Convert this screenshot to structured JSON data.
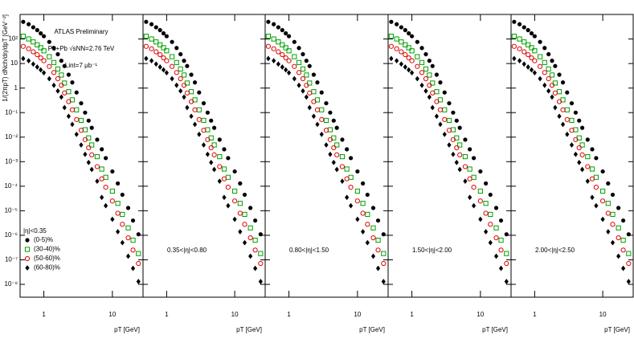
{
  "chart_data": [
    {
      "type": "scatter",
      "log_x": true,
      "log_y": true,
      "legend": "lower-left",
      "y_label": "1/(2πpT) dNch/dη/dpT [GeV⁻²]",
      "x_label": "pT [GeV]",
      "annotations": [
        "ATLAS Preliminary",
        "Pb+Pb √sNN=2.76 TeV",
        "Lint=7 μb⁻¹"
      ],
      "subtitle": "|η|<0.35",
      "xlim": [
        0.45,
        28
      ],
      "xticks": [
        1,
        10
      ],
      "ylim": [
        3e-09,
        1000
      ],
      "yticks": [
        {
          "value": 1e-08,
          "label": "10⁻⁸"
        },
        {
          "value": 1e-07,
          "label": "10⁻⁷"
        },
        {
          "value": 1e-06,
          "label": "10⁻⁶"
        },
        {
          "value": 1e-05,
          "label": "10⁻⁵"
        },
        {
          "value": 0.0001,
          "label": "10⁻⁴"
        },
        {
          "value": 0.001,
          "label": "10⁻³"
        },
        {
          "value": 0.01,
          "label": "10⁻²"
        },
        {
          "value": 0.1,
          "label": "10⁻¹"
        },
        1,
        10,
        {
          "value": 100,
          "label": "10²"
        }
      ],
      "x": [
        0.5,
        0.6,
        0.7,
        0.8,
        0.9,
        1.0,
        1.2,
        1.4,
        1.6,
        1.8,
        2.0,
        2.3,
        2.6,
        3.0,
        3.5,
        4.0,
        4.5,
        5.0,
        6,
        7,
        8,
        10,
        12,
        14,
        17,
        20,
        24
      ],
      "series": [
        {
          "name": "(0-5)%",
          "color": "#000000",
          "marker": "filled-circle",
          "values": [
            500,
            400,
            300,
            230,
            170,
            130,
            76,
            43,
            24,
            13,
            7.9,
            3.5,
            1.7,
            0.66,
            0.24,
            0.1,
            0.047,
            0.024,
            0.0079,
            0.0032,
            0.0014,
            0.0004,
            0.00013,
            4.5e-05,
            1.3e-05,
            4e-06,
            1.1e-06
          ]
        },
        {
          "name": "(30-40)%",
          "color": "#00a000",
          "marker": "open-square",
          "values": [
            130,
            100,
            76,
            58,
            44,
            33,
            19,
            11,
            6,
            3.4,
            1.6,
            0.71,
            0.33,
            0.13,
            0.048,
            0.02,
            0.0093,
            0.0048,
            0.0016,
            0.0005,
            0.00023,
            6.3e-05,
            2e-05,
            7.1e-06,
            2e-06,
            6.3e-07,
            1.8e-07
          ]
        },
        {
          "name": "(50-60)%",
          "color": "#e00000",
          "marker": "open-circle",
          "values": [
            50,
            40,
            30,
            23,
            17,
            13,
            7.6,
            4.3,
            2.4,
            1.3,
            0.63,
            0.28,
            0.13,
            0.052,
            0.019,
            0.0079,
            0.0037,
            0.0019,
            0.00063,
            0.0002,
            9.1e-05,
            2.5e-05,
            7.9e-06,
            2.8e-06,
            7.9e-07,
            2.5e-07,
            7.1e-08
          ]
        },
        {
          "name": "(60-80)%",
          "color": "#000000",
          "marker": "filled-diamond",
          "values": [
            16,
            13,
            9.5,
            7.2,
            5.5,
            4.2,
            2.4,
            1.3,
            0.76,
            0.43,
            0.16,
            0.071,
            0.033,
            0.013,
            0.0048,
            0.002,
            0.00093,
            0.00048,
            0.00016,
            3.5e-05,
            1.6e-05,
            4.5e-06,
            1.4e-06,
            5e-07,
            1.4e-07,
            4.5e-08,
            1.3e-08
          ]
        }
      ]
    },
    {
      "type": "scatter",
      "log_x": true,
      "log_y": true,
      "x_label": "pT [GeV]",
      "subtitle": "0.35<|η|<0.80",
      "xlim": [
        0.45,
        28
      ],
      "xticks": [
        1,
        10
      ],
      "ylim": [
        3e-09,
        1000
      ],
      "yticks": [
        1e-08,
        1e-07,
        1e-06,
        1e-05,
        0.0001,
        0.001,
        0.01,
        0.1,
        1,
        10,
        100
      ],
      "x": [
        0.5,
        0.6,
        0.7,
        0.8,
        0.9,
        1.0,
        1.2,
        1.4,
        1.6,
        1.8,
        2.0,
        2.3,
        2.6,
        3.0,
        3.5,
        4.0,
        4.5,
        5.0,
        6,
        7,
        8,
        10,
        12,
        14,
        17,
        20,
        24
      ],
      "series": [
        {
          "color": "#000000",
          "marker": "filled-circle",
          "values": [
            500,
            400,
            300,
            230,
            170,
            130,
            76,
            43,
            24,
            13,
            7.9,
            3.5,
            1.7,
            0.66,
            0.24,
            0.1,
            0.047,
            0.024,
            0.0079,
            0.0032,
            0.0014,
            0.0004,
            0.00013,
            4.5e-05,
            1.3e-05,
            4e-06,
            1.1e-06
          ]
        },
        {
          "color": "#00a000",
          "marker": "open-square",
          "values": [
            130,
            100,
            76,
            58,
            44,
            33,
            19,
            11,
            6,
            3.4,
            1.6,
            0.71,
            0.33,
            0.13,
            0.048,
            0.02,
            0.0093,
            0.0048,
            0.0016,
            0.0005,
            0.00023,
            6.3e-05,
            2e-05,
            7.1e-06,
            2e-06,
            6.3e-07,
            1.8e-07
          ]
        },
        {
          "color": "#e00000",
          "marker": "open-circle",
          "values": [
            50,
            40,
            30,
            23,
            17,
            13,
            7.6,
            4.3,
            2.4,
            1.3,
            0.63,
            0.28,
            0.13,
            0.052,
            0.019,
            0.0079,
            0.0037,
            0.0019,
            0.00063,
            0.0002,
            9.1e-05,
            2.5e-05,
            7.9e-06,
            2.8e-06,
            7.9e-07,
            2.5e-07,
            7.1e-08
          ]
        },
        {
          "color": "#000000",
          "marker": "filled-diamond",
          "values": [
            16,
            13,
            9.5,
            7.2,
            5.5,
            4.2,
            2.4,
            1.3,
            0.76,
            0.43,
            0.16,
            0.071,
            0.033,
            0.013,
            0.0048,
            0.002,
            0.00093,
            0.00048,
            0.00016,
            3.5e-05,
            1.6e-05,
            4.5e-06,
            1.4e-06,
            5e-07,
            1.4e-07,
            4.5e-08,
            1.3e-08
          ]
        }
      ]
    },
    {
      "type": "scatter",
      "log_x": true,
      "log_y": true,
      "x_label": "pT [GeV]",
      "subtitle": "0.80<|η|<1.50",
      "xlim": [
        0.45,
        28
      ],
      "xticks": [
        1,
        10
      ],
      "ylim": [
        3e-09,
        1000
      ],
      "yticks": [
        1e-08,
        1e-07,
        1e-06,
        1e-05,
        0.0001,
        0.001,
        0.01,
        0.1,
        1,
        10,
        100
      ],
      "x": [
        0.5,
        0.6,
        0.7,
        0.8,
        0.9,
        1.0,
        1.2,
        1.4,
        1.6,
        1.8,
        2.0,
        2.3,
        2.6,
        3.0,
        3.5,
        4.0,
        4.5,
        5.0,
        6,
        7,
        8,
        10,
        12,
        14,
        17,
        20,
        24
      ],
      "series": [
        {
          "color": "#000000",
          "marker": "filled-circle",
          "values": [
            500,
            400,
            300,
            230,
            170,
            130,
            76,
            43,
            24,
            13,
            7.9,
            3.5,
            1.7,
            0.66,
            0.24,
            0.1,
            0.047,
            0.024,
            0.0079,
            0.0032,
            0.0014,
            0.0004,
            0.00013,
            4.5e-05,
            1.3e-05,
            4e-06,
            1.1e-06
          ]
        },
        {
          "color": "#00a000",
          "marker": "open-square",
          "values": [
            130,
            100,
            76,
            58,
            44,
            33,
            19,
            11,
            6,
            3.4,
            1.6,
            0.71,
            0.33,
            0.13,
            0.048,
            0.02,
            0.0093,
            0.0048,
            0.0016,
            0.0005,
            0.00023,
            6.3e-05,
            2e-05,
            7.1e-06,
            2e-06,
            6.3e-07,
            1.8e-07
          ]
        },
        {
          "color": "#e00000",
          "marker": "open-circle",
          "values": [
            50,
            40,
            30,
            23,
            17,
            13,
            7.6,
            4.3,
            2.4,
            1.3,
            0.63,
            0.28,
            0.13,
            0.052,
            0.019,
            0.0079,
            0.0037,
            0.0019,
            0.00063,
            0.0002,
            9.1e-05,
            2.5e-05,
            7.9e-06,
            2.8e-06,
            7.9e-07,
            2.5e-07,
            7.1e-08
          ]
        },
        {
          "color": "#000000",
          "marker": "filled-diamond",
          "values": [
            16,
            13,
            9.5,
            7.2,
            5.5,
            4.2,
            2.4,
            1.3,
            0.76,
            0.43,
            0.16,
            0.071,
            0.033,
            0.013,
            0.0048,
            0.002,
            0.00093,
            0.00048,
            0.00016,
            3.5e-05,
            1.6e-05,
            4.5e-06,
            1.4e-06,
            5e-07,
            1.4e-07,
            4.5e-08,
            1.3e-08
          ]
        }
      ]
    },
    {
      "type": "scatter",
      "log_x": true,
      "log_y": true,
      "x_label": "pT [GeV]",
      "subtitle": "1.50<|η|<2.00",
      "xlim": [
        0.45,
        28
      ],
      "xticks": [
        1,
        10
      ],
      "ylim": [
        3e-09,
        1000
      ],
      "yticks": [
        1e-08,
        1e-07,
        1e-06,
        1e-05,
        0.0001,
        0.001,
        0.01,
        0.1,
        1,
        10,
        100
      ],
      "x": [
        0.5,
        0.6,
        0.7,
        0.8,
        0.9,
        1.0,
        1.2,
        1.4,
        1.6,
        1.8,
        2.0,
        2.3,
        2.6,
        3.0,
        3.5,
        4.0,
        4.5,
        5.0,
        6,
        7,
        8,
        10,
        12,
        14,
        17,
        20,
        24
      ],
      "series": [
        {
          "color": "#000000",
          "marker": "filled-circle",
          "values": [
            500,
            400,
            300,
            230,
            170,
            130,
            76,
            43,
            24,
            13,
            7.9,
            3.5,
            1.7,
            0.66,
            0.24,
            0.1,
            0.047,
            0.024,
            0.0079,
            0.0032,
            0.0014,
            0.0004,
            0.00013,
            4.5e-05,
            1.3e-05,
            4e-06,
            1.1e-06
          ]
        },
        {
          "color": "#00a000",
          "marker": "open-square",
          "values": [
            130,
            100,
            76,
            58,
            44,
            33,
            19,
            11,
            6,
            3.4,
            1.6,
            0.71,
            0.33,
            0.13,
            0.048,
            0.02,
            0.0093,
            0.0048,
            0.0016,
            0.0005,
            0.00023,
            6.3e-05,
            2e-05,
            7.1e-06,
            2e-06,
            6.3e-07,
            1.8e-07
          ]
        },
        {
          "color": "#e00000",
          "marker": "open-circle",
          "values": [
            50,
            40,
            30,
            23,
            17,
            13,
            7.6,
            4.3,
            2.4,
            1.3,
            0.63,
            0.28,
            0.13,
            0.052,
            0.019,
            0.0079,
            0.0037,
            0.0019,
            0.00063,
            0.0002,
            9.1e-05,
            2.5e-05,
            7.9e-06,
            2.8e-06,
            7.9e-07,
            2.5e-07,
            7.1e-08
          ]
        },
        {
          "color": "#000000",
          "marker": "filled-diamond",
          "values": [
            16,
            13,
            9.5,
            7.2,
            5.5,
            4.2,
            2.4,
            1.3,
            0.76,
            0.43,
            0.16,
            0.071,
            0.033,
            0.013,
            0.0048,
            0.002,
            0.00093,
            0.00048,
            0.00016,
            3.5e-05,
            1.6e-05,
            4.5e-06,
            1.4e-06,
            5e-07,
            1.4e-07,
            4.5e-08,
            1.3e-08
          ]
        }
      ]
    },
    {
      "type": "scatter",
      "log_x": true,
      "log_y": true,
      "x_label": "pT [GeV]",
      "subtitle": "2.00<|η|<2.50",
      "xlim": [
        0.45,
        28
      ],
      "xticks": [
        1,
        10
      ],
      "ylim": [
        3e-09,
        1000
      ],
      "yticks": [
        1e-08,
        1e-07,
        1e-06,
        1e-05,
        0.0001,
        0.001,
        0.01,
        0.1,
        1,
        10,
        100
      ],
      "x": [
        0.5,
        0.6,
        0.7,
        0.8,
        0.9,
        1.0,
        1.2,
        1.4,
        1.6,
        1.8,
        2.0,
        2.3,
        2.6,
        3.0,
        3.5,
        4.0,
        4.5,
        5.0,
        6,
        7,
        8,
        10,
        12,
        14,
        17,
        20,
        24
      ],
      "series": [
        {
          "color": "#000000",
          "marker": "filled-circle",
          "values": [
            500,
            400,
            300,
            230,
            170,
            130,
            76,
            43,
            24,
            13,
            7.9,
            3.5,
            1.7,
            0.66,
            0.24,
            0.1,
            0.047,
            0.024,
            0.0079,
            0.0032,
            0.0014,
            0.0004,
            0.00013,
            4.5e-05,
            1.3e-05,
            4e-06,
            1.1e-06
          ]
        },
        {
          "color": "#00a000",
          "marker": "open-square",
          "values": [
            130,
            100,
            76,
            58,
            44,
            33,
            19,
            11,
            6,
            3.4,
            1.6,
            0.71,
            0.33,
            0.13,
            0.048,
            0.02,
            0.0093,
            0.0048,
            0.0016,
            0.0005,
            0.00023,
            6.3e-05,
            2e-05,
            7.1e-06,
            2e-06,
            6.3e-07,
            1.8e-07
          ]
        },
        {
          "color": "#e00000",
          "marker": "open-circle",
          "values": [
            50,
            40,
            30,
            23,
            17,
            13,
            7.6,
            4.3,
            2.4,
            1.3,
            0.63,
            0.28,
            0.13,
            0.052,
            0.019,
            0.0079,
            0.0037,
            0.0019,
            0.00063,
            0.0002,
            9.1e-05,
            2.5e-05,
            7.9e-06,
            2.8e-06,
            7.9e-07,
            2.5e-07,
            7.1e-08
          ]
        },
        {
          "color": "#000000",
          "marker": "filled-diamond",
          "values": [
            16,
            13,
            9.5,
            7.2,
            5.5,
            4.2,
            2.4,
            1.3,
            0.76,
            0.43,
            0.16,
            0.071,
            0.033,
            0.013,
            0.0048,
            0.002,
            0.00093,
            0.00048,
            0.00016,
            3.5e-05,
            1.6e-05,
            4.5e-06,
            1.4e-06,
            5e-07,
            1.4e-07,
            4.5e-08,
            1.3e-08
          ]
        }
      ]
    }
  ]
}
